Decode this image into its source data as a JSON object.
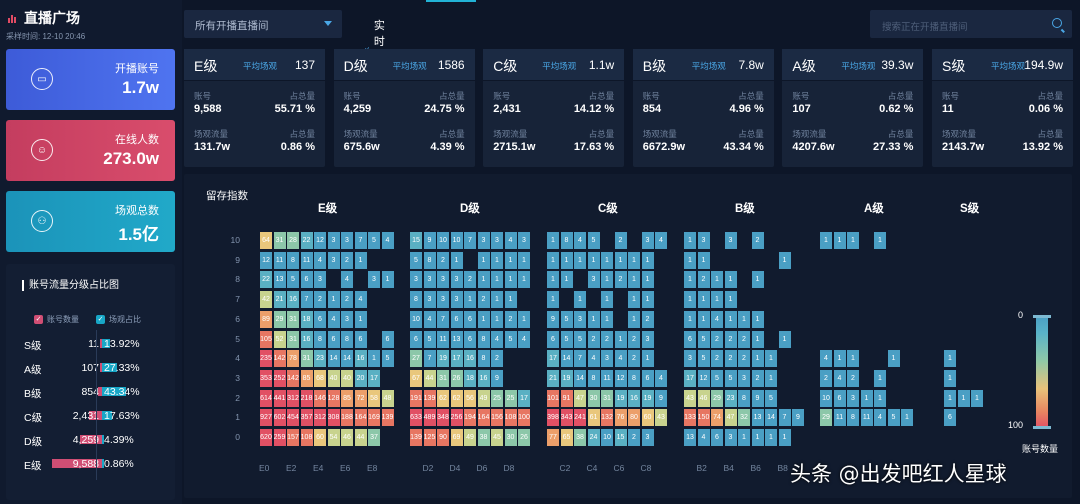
{
  "app": {
    "title": "直播广场",
    "sample_time": "采样时间:   12-10 20:46"
  },
  "stats": [
    {
      "label": "开播账号",
      "value": "1.7w",
      "icon": "tv-icon"
    },
    {
      "label": "在线人数",
      "value": "273.0w",
      "icon": "user-icon"
    },
    {
      "label": "场观总数",
      "value": "1.5亿",
      "icon": "group-icon"
    }
  ],
  "distribution": {
    "title": "账号流量分级占比图",
    "legend_left": "账号数量",
    "legend_right": "场观占比",
    "colors": {
      "left": "#d04e74",
      "right": "#18a7c7"
    },
    "rows": [
      {
        "grade": "S级",
        "count": "11",
        "pct": "13.92%",
        "count_value": 11,
        "pct_value": 13.92
      },
      {
        "grade": "A级",
        "count": "107",
        "pct": "27.33%",
        "count_value": 107,
        "pct_value": 27.33
      },
      {
        "grade": "B级",
        "count": "854",
        "pct": "43.34%",
        "count_value": 854,
        "pct_value": 43.34
      },
      {
        "grade": "C级",
        "count": "2,431",
        "pct": "17.63%",
        "count_value": 2431,
        "pct_value": 17.63
      },
      {
        "grade": "D级",
        "count": "4,259",
        "pct": "4.39%",
        "count_value": 4259,
        "pct_value": 4.39
      },
      {
        "grade": "E级",
        "count": "9,588",
        "pct": "0.86%",
        "count_value": 9588,
        "pct_value": 0.86
      }
    ]
  },
  "topbar": {
    "dropdown": "所有开播直播间",
    "tab": "实时大盘",
    "search_placeholder": "搜索正在开播直播间"
  },
  "levels": [
    {
      "grade": "E级",
      "avg_label": "平均场观",
      "avg": "137",
      "acc_label": "账号",
      "acc": "9,588",
      "share_label": "占总量",
      "acc_share": "55.71 %",
      "view_label": "场观流量",
      "view": "131.7w",
      "view_share": "0.86 %"
    },
    {
      "grade": "D级",
      "avg_label": "平均场观",
      "avg": "1586",
      "acc_label": "账号",
      "acc": "4,259",
      "share_label": "占总量",
      "acc_share": "24.75 %",
      "view_label": "场观流量",
      "view": "675.6w",
      "view_share": "4.39 %"
    },
    {
      "grade": "C级",
      "avg_label": "平均场观",
      "avg": "1.1w",
      "acc_label": "账号",
      "acc": "2,431",
      "share_label": "占总量",
      "acc_share": "14.12 %",
      "view_label": "场观流量",
      "view": "2715.1w",
      "view_share": "17.63 %"
    },
    {
      "grade": "B级",
      "avg_label": "平均场观",
      "avg": "7.8w",
      "acc_label": "账号",
      "acc": "854",
      "share_label": "占总量",
      "acc_share": "4.96 %",
      "view_label": "场观流量",
      "view": "6672.9w",
      "view_share": "43.34 %"
    },
    {
      "grade": "A级",
      "avg_label": "平均场观",
      "avg": "39.3w",
      "acc_label": "账号",
      "acc": "107",
      "share_label": "占总量",
      "acc_share": "0.62 %",
      "view_label": "场观流量",
      "view": "4207.6w",
      "view_share": "27.33 %"
    },
    {
      "grade": "S级",
      "avg_label": "平均场观",
      "avg": "194.9w",
      "acc_label": "账号",
      "acc": "11",
      "share_label": "占总量",
      "acc_share": "0.06 %",
      "view_label": "场观流量",
      "view": "2143.7w",
      "view_share": "13.92 %"
    }
  ],
  "heatmap": {
    "title": "留存指数",
    "y_labels": [
      "10",
      "9",
      "8",
      "7",
      "6",
      "5",
      "4",
      "3",
      "2",
      "1",
      "0"
    ],
    "scale_min": "0",
    "scale_max": "100",
    "scale_label": "账号数量",
    "groups": [
      {
        "grade": "E级",
        "x_labels": [
          "E0",
          "E2",
          "E4",
          "E6",
          "E8"
        ],
        "rows": [
          [
            "64",
            "31",
            "28",
            "22",
            "12",
            "3",
            "3",
            "7",
            "5",
            "4"
          ],
          [
            "12",
            "11",
            "8",
            "11",
            "4",
            "3",
            "2",
            "1",
            "",
            ""
          ],
          [
            "22",
            "13",
            "5",
            "6",
            "3",
            "",
            "4",
            "",
            "3",
            "1"
          ],
          [
            "42",
            "21",
            "16",
            "7",
            "2",
            "1",
            "2",
            "4",
            "",
            ""
          ],
          [
            "89",
            "29",
            "31",
            "18",
            "6",
            "4",
            "3",
            "1",
            "",
            ""
          ],
          [
            "105",
            "52",
            "31",
            "16",
            "8",
            "6",
            "8",
            "6",
            "",
            "6"
          ],
          [
            "235",
            "142",
            "78",
            "31",
            "23",
            "14",
            "14",
            "16",
            "1",
            "5"
          ],
          [
            "353",
            "252",
            "142",
            "85",
            "68",
            "40",
            "40",
            "20",
            "17",
            ""
          ],
          [
            "614",
            "441",
            "312",
            "218",
            "146",
            "128",
            "85",
            "72",
            "58",
            "48"
          ],
          [
            "927",
            "602",
            "454",
            "357",
            "312",
            "308",
            "188",
            "164",
            "169",
            "139"
          ],
          [
            "620",
            "259",
            "157",
            "108",
            "60",
            "54",
            "46",
            "44",
            "37",
            ""
          ]
        ]
      },
      {
        "grade": "D级",
        "x_labels": [
          "D2",
          "D4",
          "D6",
          "D8"
        ],
        "rows": [
          [
            "15",
            "9",
            "10",
            "10",
            "7",
            "3",
            "3",
            "4",
            "3"
          ],
          [
            "5",
            "8",
            "2",
            "1",
            "",
            "1",
            "1",
            "1",
            "1"
          ],
          [
            "3",
            "3",
            "3",
            "3",
            "2",
            "1",
            "1",
            "1",
            "1"
          ],
          [
            "8",
            "3",
            "3",
            "3",
            "1",
            "2",
            "1",
            "1",
            ""
          ],
          [
            "10",
            "4",
            "7",
            "6",
            "6",
            "1",
            "1",
            "2",
            "1"
          ],
          [
            "6",
            "5",
            "11",
            "13",
            "6",
            "8",
            "4",
            "5",
            "4"
          ],
          [
            "27",
            "7",
            "19",
            "17",
            "16",
            "8",
            "2",
            "",
            ""
          ],
          [
            "67",
            "44",
            "31",
            "26",
            "18",
            "16",
            "9",
            "",
            ""
          ],
          [
            "191",
            "139",
            "62",
            "62",
            "56",
            "49",
            "25",
            "25",
            "17"
          ],
          [
            "633",
            "489",
            "348",
            "256",
            "194",
            "164",
            "156",
            "108",
            "100"
          ],
          [
            "139",
            "125",
            "90",
            "69",
            "49",
            "38",
            "45",
            "30",
            "26"
          ]
        ]
      },
      {
        "grade": "C级",
        "x_labels": [
          "C2",
          "C4",
          "C6",
          "C8"
        ],
        "rows": [
          [
            "1",
            "8",
            "4",
            "5",
            "",
            "2",
            "",
            "3",
            "4"
          ],
          [
            "1",
            "1",
            "1",
            "1",
            "1",
            "1",
            "1",
            "1",
            ""
          ],
          [
            "1",
            "1",
            "",
            "3",
            "1",
            "2",
            "1",
            "1",
            ""
          ],
          [
            "1",
            "",
            "1",
            "",
            "1",
            "",
            "1",
            "1",
            ""
          ],
          [
            "9",
            "5",
            "3",
            "1",
            "1",
            "",
            "1",
            "2",
            ""
          ],
          [
            "6",
            "5",
            "5",
            "2",
            "2",
            "1",
            "2",
            "3",
            ""
          ],
          [
            "17",
            "14",
            "7",
            "4",
            "3",
            "4",
            "2",
            "1",
            ""
          ],
          [
            "21",
            "19",
            "14",
            "8",
            "11",
            "12",
            "8",
            "6",
            "4"
          ],
          [
            "101",
            "91",
            "47",
            "30",
            "31",
            "19",
            "16",
            "19",
            "9"
          ],
          [
            "398",
            "343",
            "241",
            "61",
            "132",
            "76",
            "80",
            "60",
            "43"
          ],
          [
            "77",
            "65",
            "38",
            "24",
            "10",
            "15",
            "2",
            "3",
            ""
          ]
        ]
      },
      {
        "grade": "B级",
        "x_labels": [
          "B2",
          "B4",
          "B6",
          "B8"
        ],
        "rows": [
          [
            "1",
            "3",
            "",
            "3",
            "",
            "2",
            "",
            "",
            ""
          ],
          [
            "1",
            "1",
            "",
            "",
            "",
            "",
            "",
            "1",
            ""
          ],
          [
            "1",
            "2",
            "1",
            "1",
            "",
            "1",
            "",
            "",
            ""
          ],
          [
            "1",
            "1",
            "1",
            "1",
            "",
            "",
            "",
            "",
            ""
          ],
          [
            "1",
            "1",
            "4",
            "1",
            "1",
            "1",
            "",
            "",
            ""
          ],
          [
            "6",
            "5",
            "2",
            "2",
            "2",
            "1",
            "",
            "1",
            ""
          ],
          [
            "3",
            "5",
            "2",
            "2",
            "2",
            "1",
            "1",
            "",
            ""
          ],
          [
            "17",
            "12",
            "5",
            "5",
            "3",
            "2",
            "1",
            "",
            ""
          ],
          [
            "43",
            "46",
            "29",
            "23",
            "8",
            "9",
            "5",
            "",
            ""
          ],
          [
            "133",
            "150",
            "74",
            "47",
            "32",
            "13",
            "14",
            "7",
            "9"
          ],
          [
            "13",
            "4",
            "6",
            "3",
            "1",
            "1",
            "1",
            "1",
            ""
          ]
        ]
      },
      {
        "grade": "A级",
        "x_labels": [],
        "rows": [
          [
            "1",
            "1",
            "1",
            "",
            "1",
            "",
            ""
          ],
          [
            "",
            "",
            "",
            "",
            "",
            "",
            ""
          ],
          [
            "",
            "",
            "",
            "",
            "",
            "",
            ""
          ],
          [
            "",
            "",
            "",
            "",
            "",
            "",
            ""
          ],
          [
            "",
            "",
            "",
            "",
            "",
            "",
            ""
          ],
          [
            "",
            "",
            "",
            "",
            "",
            "",
            ""
          ],
          [
            "4",
            "1",
            "1",
            "",
            "",
            "1",
            ""
          ],
          [
            "2",
            "4",
            "2",
            "",
            "1",
            "",
            ""
          ],
          [
            "10",
            "6",
            "3",
            "1",
            "1",
            "",
            ""
          ],
          [
            "29",
            "11",
            "8",
            "11",
            "4",
            "5",
            "1"
          ],
          [
            "",
            "",
            "",
            "",
            "",
            "",
            ""
          ]
        ]
      },
      {
        "grade": "S级",
        "x_labels": [],
        "rows": [
          [
            "",
            "",
            ""
          ],
          [
            "",
            "",
            ""
          ],
          [
            "",
            "",
            ""
          ],
          [
            "",
            "",
            ""
          ],
          [
            "",
            "",
            ""
          ],
          [
            "",
            "",
            ""
          ],
          [
            "1",
            "",
            ""
          ],
          [
            "1",
            "",
            ""
          ],
          [
            "1",
            "1",
            "1"
          ],
          [
            "6",
            "",
            ""
          ],
          [
            "",
            "",
            ""
          ]
        ]
      }
    ]
  },
  "watermark": "头条 @出发吧红人星球"
}
